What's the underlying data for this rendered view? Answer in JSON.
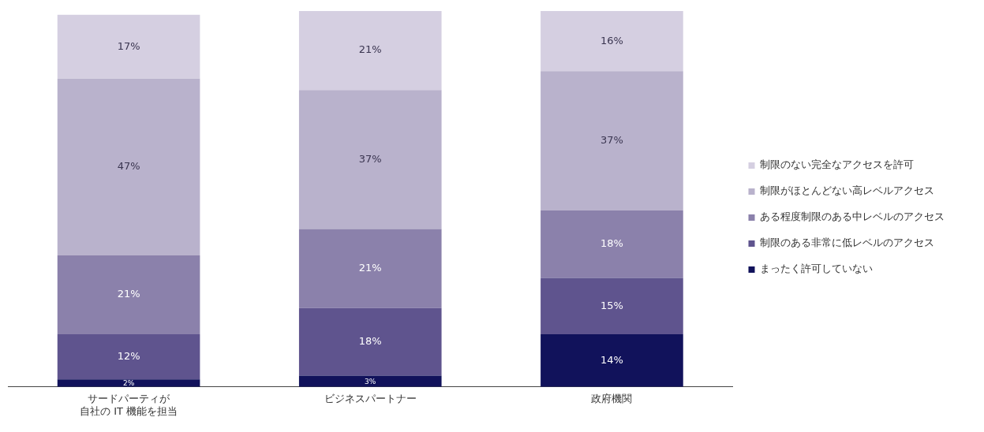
{
  "chart_data": {
    "type": "bar",
    "stacked": true,
    "legend": "right",
    "grid": false,
    "categories": [
      "サードパーティが自社の IT 機能を担当",
      "ビジネスパートナー",
      "政府機関"
    ],
    "series": [
      {
        "name": "まったく許可していない",
        "color": "#11125b",
        "values": [
          2,
          3,
          14
        ],
        "value_labels": [
          "2%",
          "3%",
          "14%"
        ]
      },
      {
        "name": "制限のある非常に低レベルのアクセス",
        "color": "#5f548e",
        "values": [
          12,
          18,
          15
        ],
        "value_labels": [
          "12%",
          "18%",
          "15%"
        ]
      },
      {
        "name": "ある程度制限のある中レベルのアクセス",
        "color": "#8b81ab",
        "values": [
          21,
          21,
          18
        ],
        "value_labels": [
          "21%",
          "21%",
          "18%"
        ]
      },
      {
        "name": "制限がほとんどない高レベルアクセス",
        "color": "#b9b2cc",
        "values": [
          47,
          37,
          37
        ],
        "value_labels": [
          "47%",
          "37%",
          "37%"
        ]
      },
      {
        "name": "制限のない完全なアクセスを許可",
        "color": "#d5cfe1",
        "values": [
          17,
          21,
          16
        ],
        "value_labels": [
          "17%",
          "21%",
          "16%"
        ]
      }
    ]
  }
}
